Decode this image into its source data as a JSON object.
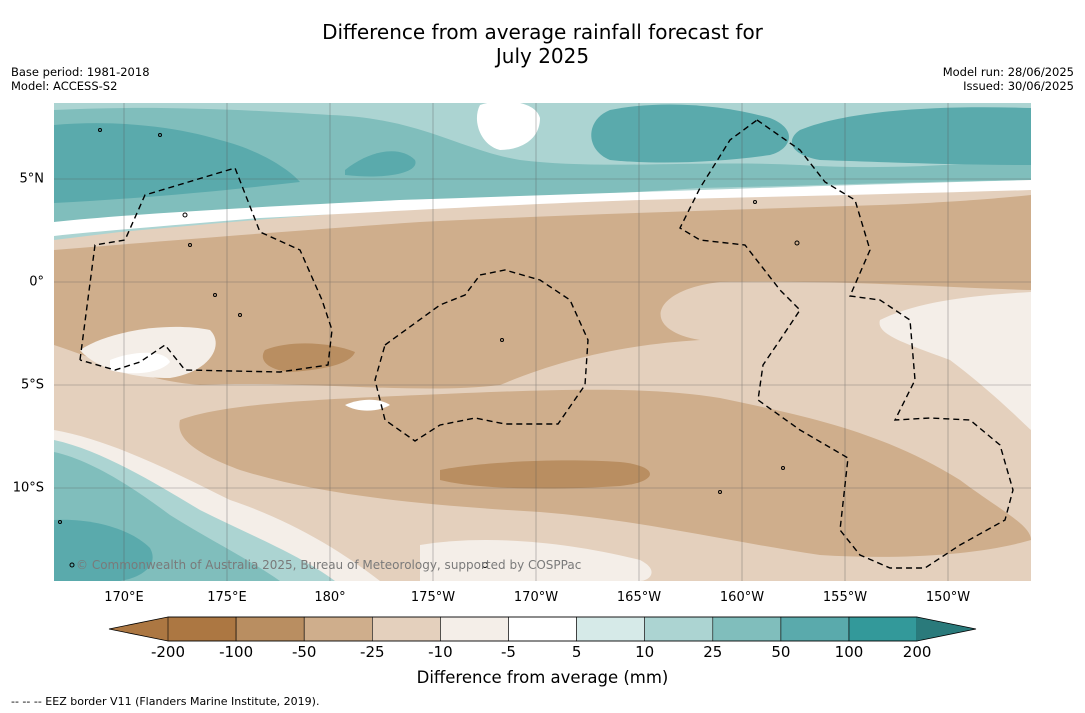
{
  "title_line1": "Difference from average rainfall forecast for",
  "title_line2": "July 2025",
  "base_period": "Base period: 1981-2018",
  "model": "Model: ACCESS-S2",
  "model_run": "Model run: 28/06/2025",
  "issued": "Issued: 30/06/2025",
  "copyright": "© Commonwealth of Australia 2025, Bureau of Meteorology, supported by COSPPac",
  "lat_labels": [
    "5°N",
    "0°",
    "5°S",
    "10°S"
  ],
  "lon_labels": [
    "170°E",
    "175°E",
    "180°",
    "175°W",
    "170°W",
    "165°W",
    "160°W",
    "155°W",
    "150°W"
  ],
  "colorbar": {
    "ticks": [
      "-200",
      "-100",
      "-50",
      "-25",
      "-10",
      "-5",
      "5",
      "10",
      "25",
      "50",
      "100",
      "200"
    ],
    "label": "Difference from average (mm)",
    "colors": [
      "#ac7742",
      "#b98e61",
      "#cfae8c",
      "#e4d0bd",
      "#f4eee8",
      "#ffffff",
      "#d6eae8",
      "#acd4d2",
      "#80bebc",
      "#5aaaac",
      "#33999a",
      "#2a7a7b"
    ]
  },
  "legend_note": "--  --  -- EEZ border V11 (Flanders Marine Institute, 2019)."
}
